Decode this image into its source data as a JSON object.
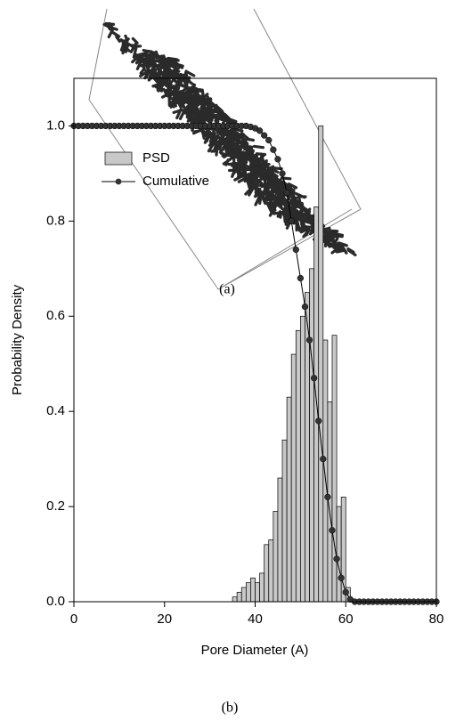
{
  "figure_a": {
    "caption": "(a)"
  },
  "chart_data": {
    "type": "histogram",
    "xlabel": "Pore Diameter (A)",
    "ylabel": "Probability Density",
    "xlim": [
      0,
      80
    ],
    "xticks": [
      0,
      20,
      40,
      60,
      80
    ],
    "ylim": [
      0,
      1.1
    ],
    "yticks": [
      {
        "value": 0,
        "label": "0.0"
      },
      {
        "value": 0.2,
        "label": "0.2"
      },
      {
        "value": 0.4,
        "label": "0.4"
      },
      {
        "value": 0.6,
        "label": "0.6"
      },
      {
        "value": 0.8,
        "label": "0.8"
      },
      {
        "value": 1,
        "label": "1.0"
      }
    ],
    "legend": "upper left",
    "series": [
      {
        "name": "PSD",
        "type": "histogram",
        "color": "#c8c8c8",
        "bins": [
          35,
          36,
          37,
          38,
          39,
          40,
          41,
          42,
          43,
          44,
          45,
          46,
          47,
          48,
          49,
          50,
          51,
          52,
          53,
          54,
          55,
          56,
          57,
          58,
          59,
          60,
          61
        ],
        "values": [
          0.01,
          0.02,
          0.03,
          0.04,
          0.05,
          0.04,
          0.06,
          0.12,
          0.13,
          0.19,
          0.26,
          0.34,
          0.43,
          0.52,
          0.57,
          0.6,
          0.65,
          0.7,
          0.83,
          1.0,
          0.55,
          0.42,
          0.56,
          0.2,
          0.22,
          0.03
        ]
      },
      {
        "name": "Cumulative",
        "type": "line",
        "color": "#000000",
        "x": [
          0,
          1,
          2,
          3,
          4,
          5,
          6,
          7,
          8,
          9,
          10,
          11,
          12,
          13,
          14,
          15,
          16,
          17,
          18,
          19,
          20,
          21,
          22,
          23,
          24,
          25,
          26,
          27,
          28,
          29,
          30,
          31,
          32,
          33,
          34,
          35,
          36,
          37,
          38,
          39,
          40,
          41,
          42,
          43,
          44,
          45,
          46,
          47,
          48,
          49,
          50,
          51,
          52,
          53,
          54,
          55,
          56,
          57,
          58,
          59,
          60,
          61,
          62,
          63,
          64,
          65,
          66,
          67,
          68,
          69,
          70,
          71,
          72,
          73,
          74,
          75,
          76,
          77,
          78,
          79,
          80
        ],
        "values": [
          1,
          1,
          1,
          1,
          1,
          1,
          1,
          1,
          1,
          1,
          1,
          1,
          1,
          1,
          1,
          1,
          1,
          1,
          1,
          1,
          1,
          1,
          1,
          1,
          1,
          1,
          1,
          1,
          1,
          1,
          1,
          1,
          1,
          1,
          1,
          1,
          1,
          1,
          1,
          0.998,
          0.995,
          0.99,
          0.98,
          0.97,
          0.95,
          0.93,
          0.9,
          0.86,
          0.8,
          0.74,
          0.68,
          0.62,
          0.55,
          0.47,
          0.38,
          0.3,
          0.22,
          0.15,
          0.09,
          0.05,
          0.02,
          0.005,
          0,
          0,
          0,
          0,
          0,
          0,
          0,
          0,
          0,
          0,
          0,
          0,
          0,
          0,
          0,
          0,
          0,
          0,
          0
        ]
      }
    ]
  },
  "figure_b": {
    "caption": "(b)"
  }
}
